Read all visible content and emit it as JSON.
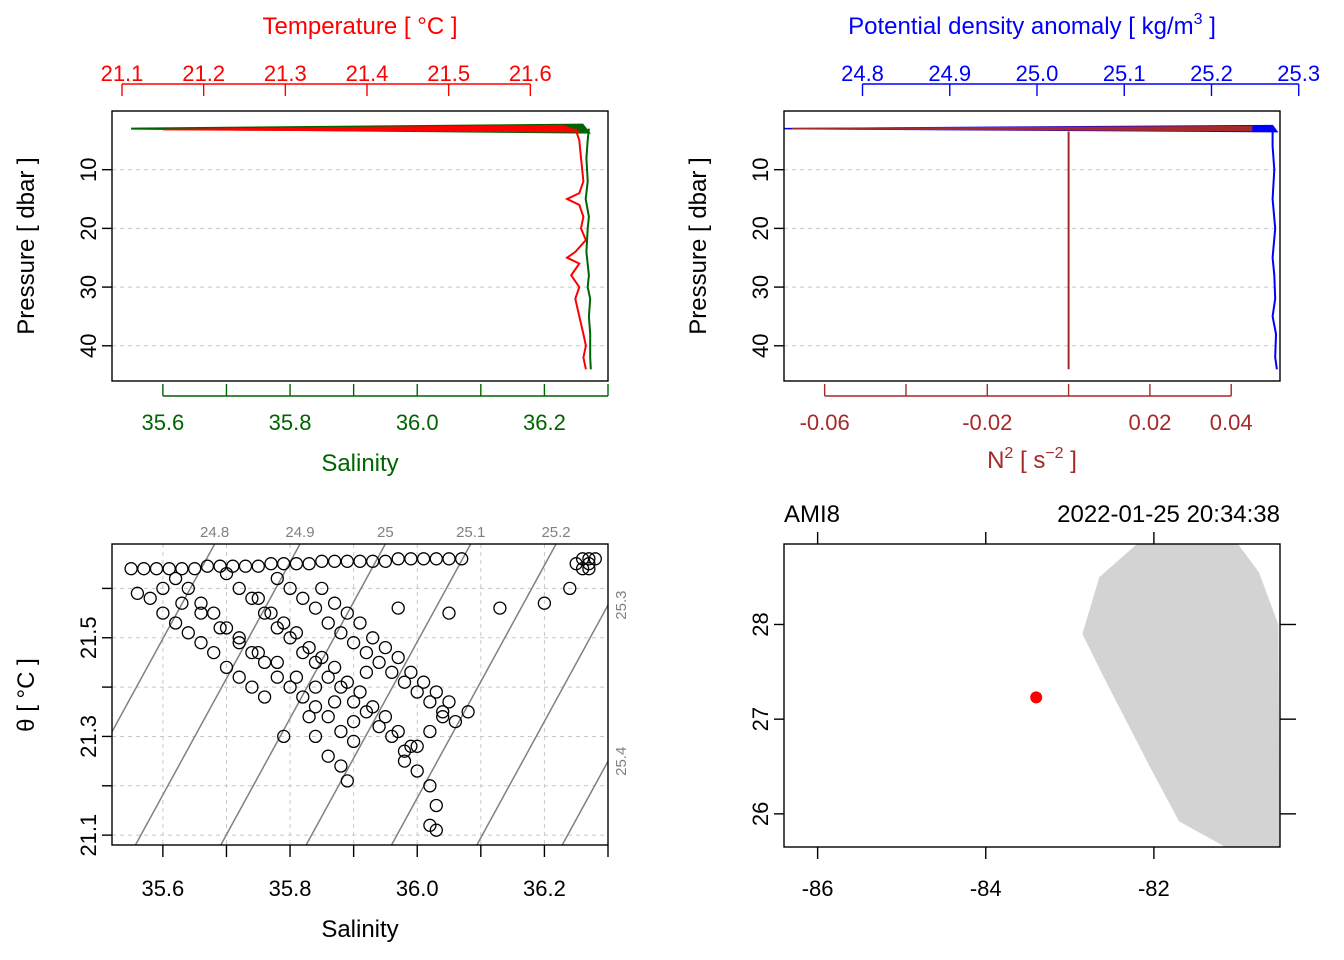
{
  "chart_data": [
    {
      "type": "line",
      "panel": "profile-ts",
      "top_axis": {
        "label": "Temperature [ °C ]",
        "color": "#ff0000",
        "ticks": [
          21.1,
          21.2,
          21.3,
          21.4,
          21.5,
          21.6
        ],
        "tick_labels": [
          "21.1",
          "21.2",
          "21.3",
          "21.4",
          "21.5",
          "21.6"
        ],
        "range": [
          21.1,
          21.7
        ]
      },
      "bottom_axis": {
        "label": "Salinity",
        "color": "#006400",
        "ticks": [
          35.6,
          35.8,
          36.0,
          36.2
        ],
        "tick_labels": [
          "35.6",
          "35.8",
          "36.0",
          "36.2"
        ],
        "minor_ticks": [
          35.7,
          35.9,
          36.1,
          36.3
        ],
        "range": [
          35.52,
          36.3
        ]
      },
      "left_axis": {
        "label": "Pressure [ dbar ]",
        "ticks": [
          10,
          20,
          30,
          40
        ],
        "tick_labels": [
          "10",
          "20",
          "30",
          "40"
        ],
        "range": [
          0,
          46
        ],
        "reversed": true
      },
      "grid": true,
      "series": [
        {
          "color": "#ff0000",
          "y": [
            3,
            5,
            8,
            12,
            14,
            15,
            16,
            18,
            20,
            22,
            24,
            25,
            26,
            28,
            30,
            32,
            35,
            38,
            40,
            42,
            44
          ],
          "x": [
            21.655,
            21.66,
            21.662,
            21.665,
            21.66,
            21.645,
            21.66,
            21.665,
            21.662,
            21.668,
            21.655,
            21.645,
            21.66,
            21.65,
            21.66,
            21.655,
            21.66,
            21.665,
            21.668,
            21.665,
            21.668
          ]
        },
        {
          "color": "#006400",
          "y": [
            3,
            5,
            8,
            12,
            15,
            18,
            20,
            24,
            28,
            30,
            32,
            35,
            38,
            40,
            42,
            44
          ],
          "x": [
            36.27,
            36.268,
            36.266,
            36.268,
            36.265,
            36.27,
            36.268,
            36.266,
            36.27,
            36.268,
            36.272,
            36.27,
            36.272,
            36.272,
            36.272,
            36.273
          ]
        }
      ]
    },
    {
      "type": "line",
      "panel": "profile-density-n2",
      "top_axis": {
        "label": "Potential density anomaly [ kg/m",
        "label_sup": "3",
        "label_end": " ]",
        "color": "#0000ff",
        "ticks": [
          24.8,
          24.9,
          25.0,
          25.1,
          25.2,
          25.3
        ],
        "tick_labels": [
          "24.8",
          "24.9",
          "25.0",
          "25.1",
          "25.2",
          "25.3"
        ],
        "range": [
          24.71,
          25.29
        ]
      },
      "bottom_axis": {
        "label": "N",
        "label_sup": "2",
        "label_mid": " [ s",
        "label_sup2": "−2",
        "label_end": " ]",
        "color": "#a52a2a",
        "ticks": [
          -0.06,
          -0.02,
          0.02,
          0.04
        ],
        "tick_labels": [
          "-0.06",
          "-0.02",
          "0.02",
          "0.04"
        ],
        "minor_ticks": [
          -0.04,
          0.0
        ],
        "range": [
          -0.07,
          0.052
        ]
      },
      "left_axis": {
        "label": "Pressure [ dbar ]",
        "ticks": [
          10,
          20,
          30,
          40
        ],
        "tick_labels": [
          "10",
          "20",
          "30",
          "40"
        ],
        "range": [
          0,
          46
        ],
        "reversed": true
      },
      "grid": true,
      "series": [
        {
          "color": "#0000ff",
          "y": [
            3,
            6,
            10,
            15,
            20,
            25,
            28,
            32,
            35,
            38,
            42,
            44
          ],
          "x": [
            25.27,
            25.27,
            25.272,
            25.27,
            25.273,
            25.27,
            25.272,
            25.273,
            25.27,
            25.274,
            25.273,
            25.275
          ]
        },
        {
          "color": "#a52a2a",
          "y": [
            3.5,
            4,
            6,
            10,
            20,
            30,
            40,
            44
          ],
          "x": [
            0.0,
            0.0,
            0.0,
            0.0,
            0.0,
            0.0,
            0.0,
            0.0
          ]
        }
      ]
    },
    {
      "type": "scatter",
      "panel": "ts-diagram",
      "xlabel": "Salinity",
      "ylabel": "θ [ °C ]",
      "xlim": [
        35.52,
        36.3
      ],
      "ylim": [
        21.08,
        21.69
      ],
      "x_ticks": [
        35.6,
        35.8,
        36.0,
        36.2
      ],
      "x_tick_labels": [
        "35.6",
        "35.8",
        "36.0",
        "36.2"
      ],
      "x_minor_ticks": [
        35.7,
        35.9,
        36.1,
        36.3
      ],
      "y_ticks": [
        21.1,
        21.3,
        21.5
      ],
      "y_tick_labels": [
        "21.1",
        "21.3",
        "21.5"
      ],
      "y_minor_ticks": [
        21.2,
        21.4,
        21.6
      ],
      "grid": true,
      "isopycnals": [
        {
          "sigma": 24.8,
          "label": "24.8"
        },
        {
          "sigma": 24.9,
          "label": "24.9"
        },
        {
          "sigma": 25.0,
          "label": "25"
        },
        {
          "sigma": 25.1,
          "label": "25.1"
        },
        {
          "sigma": 25.2,
          "label": "25.2"
        },
        {
          "sigma": 25.3,
          "label": "25.3"
        },
        {
          "sigma": 25.4,
          "label": "25.4"
        }
      ],
      "points": [
        [
          35.55,
          21.64
        ],
        [
          35.57,
          21.64
        ],
        [
          35.59,
          21.64
        ],
        [
          35.61,
          21.64
        ],
        [
          35.63,
          21.64
        ],
        [
          35.65,
          21.64
        ],
        [
          35.67,
          21.645
        ],
        [
          35.69,
          21.645
        ],
        [
          35.71,
          21.645
        ],
        [
          35.73,
          21.645
        ],
        [
          35.75,
          21.645
        ],
        [
          35.77,
          21.65
        ],
        [
          35.79,
          21.65
        ],
        [
          35.81,
          21.65
        ],
        [
          35.83,
          21.65
        ],
        [
          35.85,
          21.655
        ],
        [
          35.87,
          21.655
        ],
        [
          35.89,
          21.655
        ],
        [
          35.91,
          21.655
        ],
        [
          35.93,
          21.655
        ],
        [
          35.95,
          21.655
        ],
        [
          35.97,
          21.66
        ],
        [
          35.99,
          21.66
        ],
        [
          36.01,
          21.66
        ],
        [
          36.03,
          21.66
        ],
        [
          36.05,
          21.66
        ],
        [
          36.07,
          21.66
        ],
        [
          35.56,
          21.59
        ],
        [
          35.58,
          21.58
        ],
        [
          35.6,
          21.55
        ],
        [
          35.62,
          21.53
        ],
        [
          35.64,
          21.51
        ],
        [
          35.66,
          21.49
        ],
        [
          35.68,
          21.47
        ],
        [
          35.7,
          21.44
        ],
        [
          35.72,
          21.42
        ],
        [
          35.74,
          21.4
        ],
        [
          35.76,
          21.38
        ],
        [
          35.62,
          21.62
        ],
        [
          35.64,
          21.6
        ],
        [
          35.66,
          21.57
        ],
        [
          35.68,
          21.55
        ],
        [
          35.7,
          21.52
        ],
        [
          35.72,
          21.49
        ],
        [
          35.74,
          21.47
        ],
        [
          35.76,
          21.45
        ],
        [
          35.78,
          21.42
        ],
        [
          35.8,
          21.4
        ],
        [
          35.82,
          21.38
        ],
        [
          35.84,
          21.36
        ],
        [
          35.86,
          21.34
        ],
        [
          35.88,
          21.31
        ],
        [
          35.9,
          21.29
        ],
        [
          35.7,
          21.63
        ],
        [
          35.72,
          21.6
        ],
        [
          35.74,
          21.58
        ],
        [
          35.76,
          21.55
        ],
        [
          35.78,
          21.52
        ],
        [
          35.8,
          21.5
        ],
        [
          35.82,
          21.47
        ],
        [
          35.84,
          21.45
        ],
        [
          35.86,
          21.42
        ],
        [
          35.88,
          21.4
        ],
        [
          35.9,
          21.37
        ],
        [
          35.92,
          21.35
        ],
        [
          35.94,
          21.32
        ],
        [
          35.96,
          21.3
        ],
        [
          35.98,
          21.27
        ],
        [
          36.0,
          21.23
        ],
        [
          36.02,
          21.2
        ],
        [
          36.03,
          21.16
        ],
        [
          36.02,
          21.12
        ],
        [
          36.03,
          21.11
        ],
        [
          35.78,
          21.62
        ],
        [
          35.8,
          21.6
        ],
        [
          35.82,
          21.58
        ],
        [
          35.84,
          21.56
        ],
        [
          35.86,
          21.53
        ],
        [
          35.88,
          21.51
        ],
        [
          35.9,
          21.49
        ],
        [
          35.92,
          21.47
        ],
        [
          35.94,
          21.45
        ],
        [
          35.96,
          21.43
        ],
        [
          35.98,
          21.41
        ],
        [
          36.0,
          21.39
        ],
        [
          36.02,
          21.37
        ],
        [
          36.04,
          21.35
        ],
        [
          36.06,
          21.33
        ],
        [
          36.08,
          21.35
        ],
        [
          35.85,
          21.6
        ],
        [
          35.87,
          21.57
        ],
        [
          35.89,
          21.55
        ],
        [
          35.91,
          21.53
        ],
        [
          35.93,
          21.5
        ],
        [
          35.95,
          21.48
        ],
        [
          35.97,
          21.46
        ],
        [
          35.99,
          21.43
        ],
        [
          36.01,
          21.41
        ],
        [
          36.03,
          21.39
        ],
        [
          36.05,
          21.37
        ],
        [
          36.04,
          21.34
        ],
        [
          36.02,
          21.31
        ],
        [
          36.0,
          21.28
        ],
        [
          35.98,
          21.25
        ],
        [
          35.75,
          21.58
        ],
        [
          35.77,
          21.55
        ],
        [
          35.79,
          21.53
        ],
        [
          35.81,
          21.51
        ],
        [
          35.83,
          21.48
        ],
        [
          35.85,
          21.46
        ],
        [
          35.87,
          21.44
        ],
        [
          35.89,
          21.41
        ],
        [
          35.91,
          21.39
        ],
        [
          35.93,
          21.36
        ],
        [
          35.95,
          21.34
        ],
        [
          35.97,
          21.31
        ],
        [
          35.99,
          21.28
        ],
        [
          35.6,
          21.6
        ],
        [
          35.63,
          21.57
        ],
        [
          35.66,
          21.55
        ],
        [
          35.69,
          21.52
        ],
        [
          35.72,
          21.5
        ],
        [
          35.75,
          21.47
        ],
        [
          35.78,
          21.45
        ],
        [
          35.81,
          21.42
        ],
        [
          35.84,
          21.4
        ],
        [
          35.87,
          21.37
        ],
        [
          35.9,
          21.33
        ],
        [
          35.88,
          21.24
        ],
        [
          35.89,
          21.21
        ],
        [
          35.86,
          21.26
        ],
        [
          35.84,
          21.3
        ],
        [
          35.79,
          21.3
        ],
        [
          35.83,
          21.34
        ],
        [
          35.92,
          21.43
        ],
        [
          35.97,
          21.56
        ],
        [
          36.05,
          21.55
        ],
        [
          36.13,
          21.56
        ],
        [
          36.2,
          21.57
        ],
        [
          36.24,
          21.6
        ],
        [
          36.26,
          21.64
        ],
        [
          36.27,
          21.65
        ],
        [
          36.27,
          21.66
        ],
        [
          36.26,
          21.66
        ],
        [
          36.28,
          21.66
        ],
        [
          36.27,
          21.64
        ],
        [
          36.25,
          21.65
        ]
      ]
    },
    {
      "type": "map",
      "panel": "station-map",
      "station": "AMI8",
      "datetime": "2022-01-25 20:34:38",
      "lon_range": [
        -86.4,
        -80.5
      ],
      "lat_range": [
        25.65,
        28.85
      ],
      "x_ticks": [
        -86,
        -84,
        -82
      ],
      "x_tick_labels": [
        "-86",
        "-84",
        "-82"
      ],
      "x_top_ticks": [
        -86,
        -84,
        -82
      ],
      "y_ticks": [
        26,
        27,
        28
      ],
      "y_tick_labels": [
        "26",
        "27",
        "28"
      ],
      "station_point": {
        "lon": -83.4,
        "lat": 27.23,
        "color": "#ff0000"
      },
      "land_color": "#d3d3d3",
      "coastline": [
        [
          -82.2,
          28.85
        ],
        [
          -81.0,
          28.85
        ],
        [
          -80.75,
          28.55
        ],
        [
          -80.52,
          28.0
        ],
        [
          -80.5,
          25.65
        ],
        [
          -81.15,
          25.65
        ],
        [
          -81.7,
          25.92
        ],
        [
          -82.05,
          26.5
        ],
        [
          -82.6,
          27.45
        ],
        [
          -82.85,
          27.9
        ],
        [
          -82.65,
          28.5
        ],
        [
          -82.2,
          28.85
        ]
      ]
    }
  ]
}
